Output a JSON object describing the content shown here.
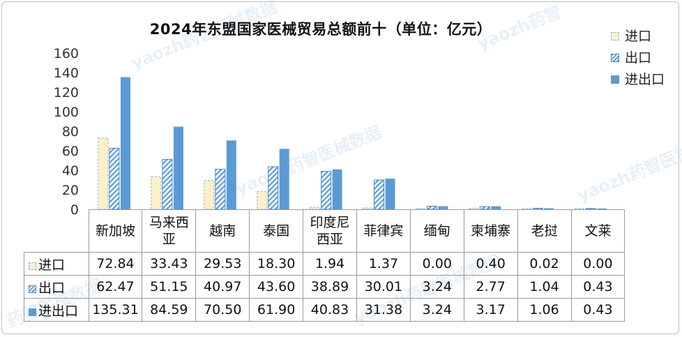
{
  "chart_data": {
    "type": "bar",
    "title": "2024年东盟国家医械贸易总额前十（单位：亿元）",
    "categories": [
      "新加坡",
      "马来西亚",
      "越南",
      "泰国",
      "印度尼西亚",
      "菲律宾",
      "缅甸",
      "柬埔寨",
      "老挝",
      "文莱"
    ],
    "series": [
      {
        "name": "进口",
        "values": [
          72.84,
          33.43,
          29.53,
          18.3,
          1.94,
          1.37,
          0.0,
          0.4,
          0.02,
          0.0
        ],
        "display": [
          "72.84",
          "33.43",
          "29.53",
          "18.30",
          "1.94",
          "1.37",
          "0.00",
          "0.40",
          "0.02",
          "0.00"
        ],
        "color": "#fdf0c9",
        "pattern": "dashed-outline"
      },
      {
        "name": "出口",
        "values": [
          62.47,
          51.15,
          40.97,
          43.6,
          38.89,
          30.01,
          3.24,
          2.77,
          1.04,
          0.43
        ],
        "display": [
          "62.47",
          "51.15",
          "40.97",
          "43.60",
          "38.89",
          "30.01",
          "3.24",
          "2.77",
          "1.04",
          "0.43"
        ],
        "color": "#5b9bd5",
        "pattern": "diagonal-stripes"
      },
      {
        "name": "进出口",
        "values": [
          135.31,
          84.59,
          70.5,
          61.9,
          40.83,
          31.38,
          3.24,
          3.17,
          1.06,
          0.43
        ],
        "display": [
          "135.31",
          "84.59",
          "70.50",
          "61.90",
          "40.83",
          "31.38",
          "3.24",
          "3.17",
          "1.06",
          "0.43"
        ],
        "color": "#5b9bd5",
        "pattern": "solid"
      }
    ],
    "yticks": [
      "0",
      "20",
      "40",
      "60",
      "80",
      "100",
      "120",
      "140",
      "160"
    ],
    "ylim": [
      0,
      160
    ],
    "grid": false,
    "legend_position": "top-right",
    "data_table": true
  },
  "watermarks": [
    "yaozh药智医械数据",
    "yaozh药智医械数据",
    "yaozh药智医械数据",
    "yaozh药智",
    "yaozh药智医械数据",
    "药智医械数据"
  ]
}
